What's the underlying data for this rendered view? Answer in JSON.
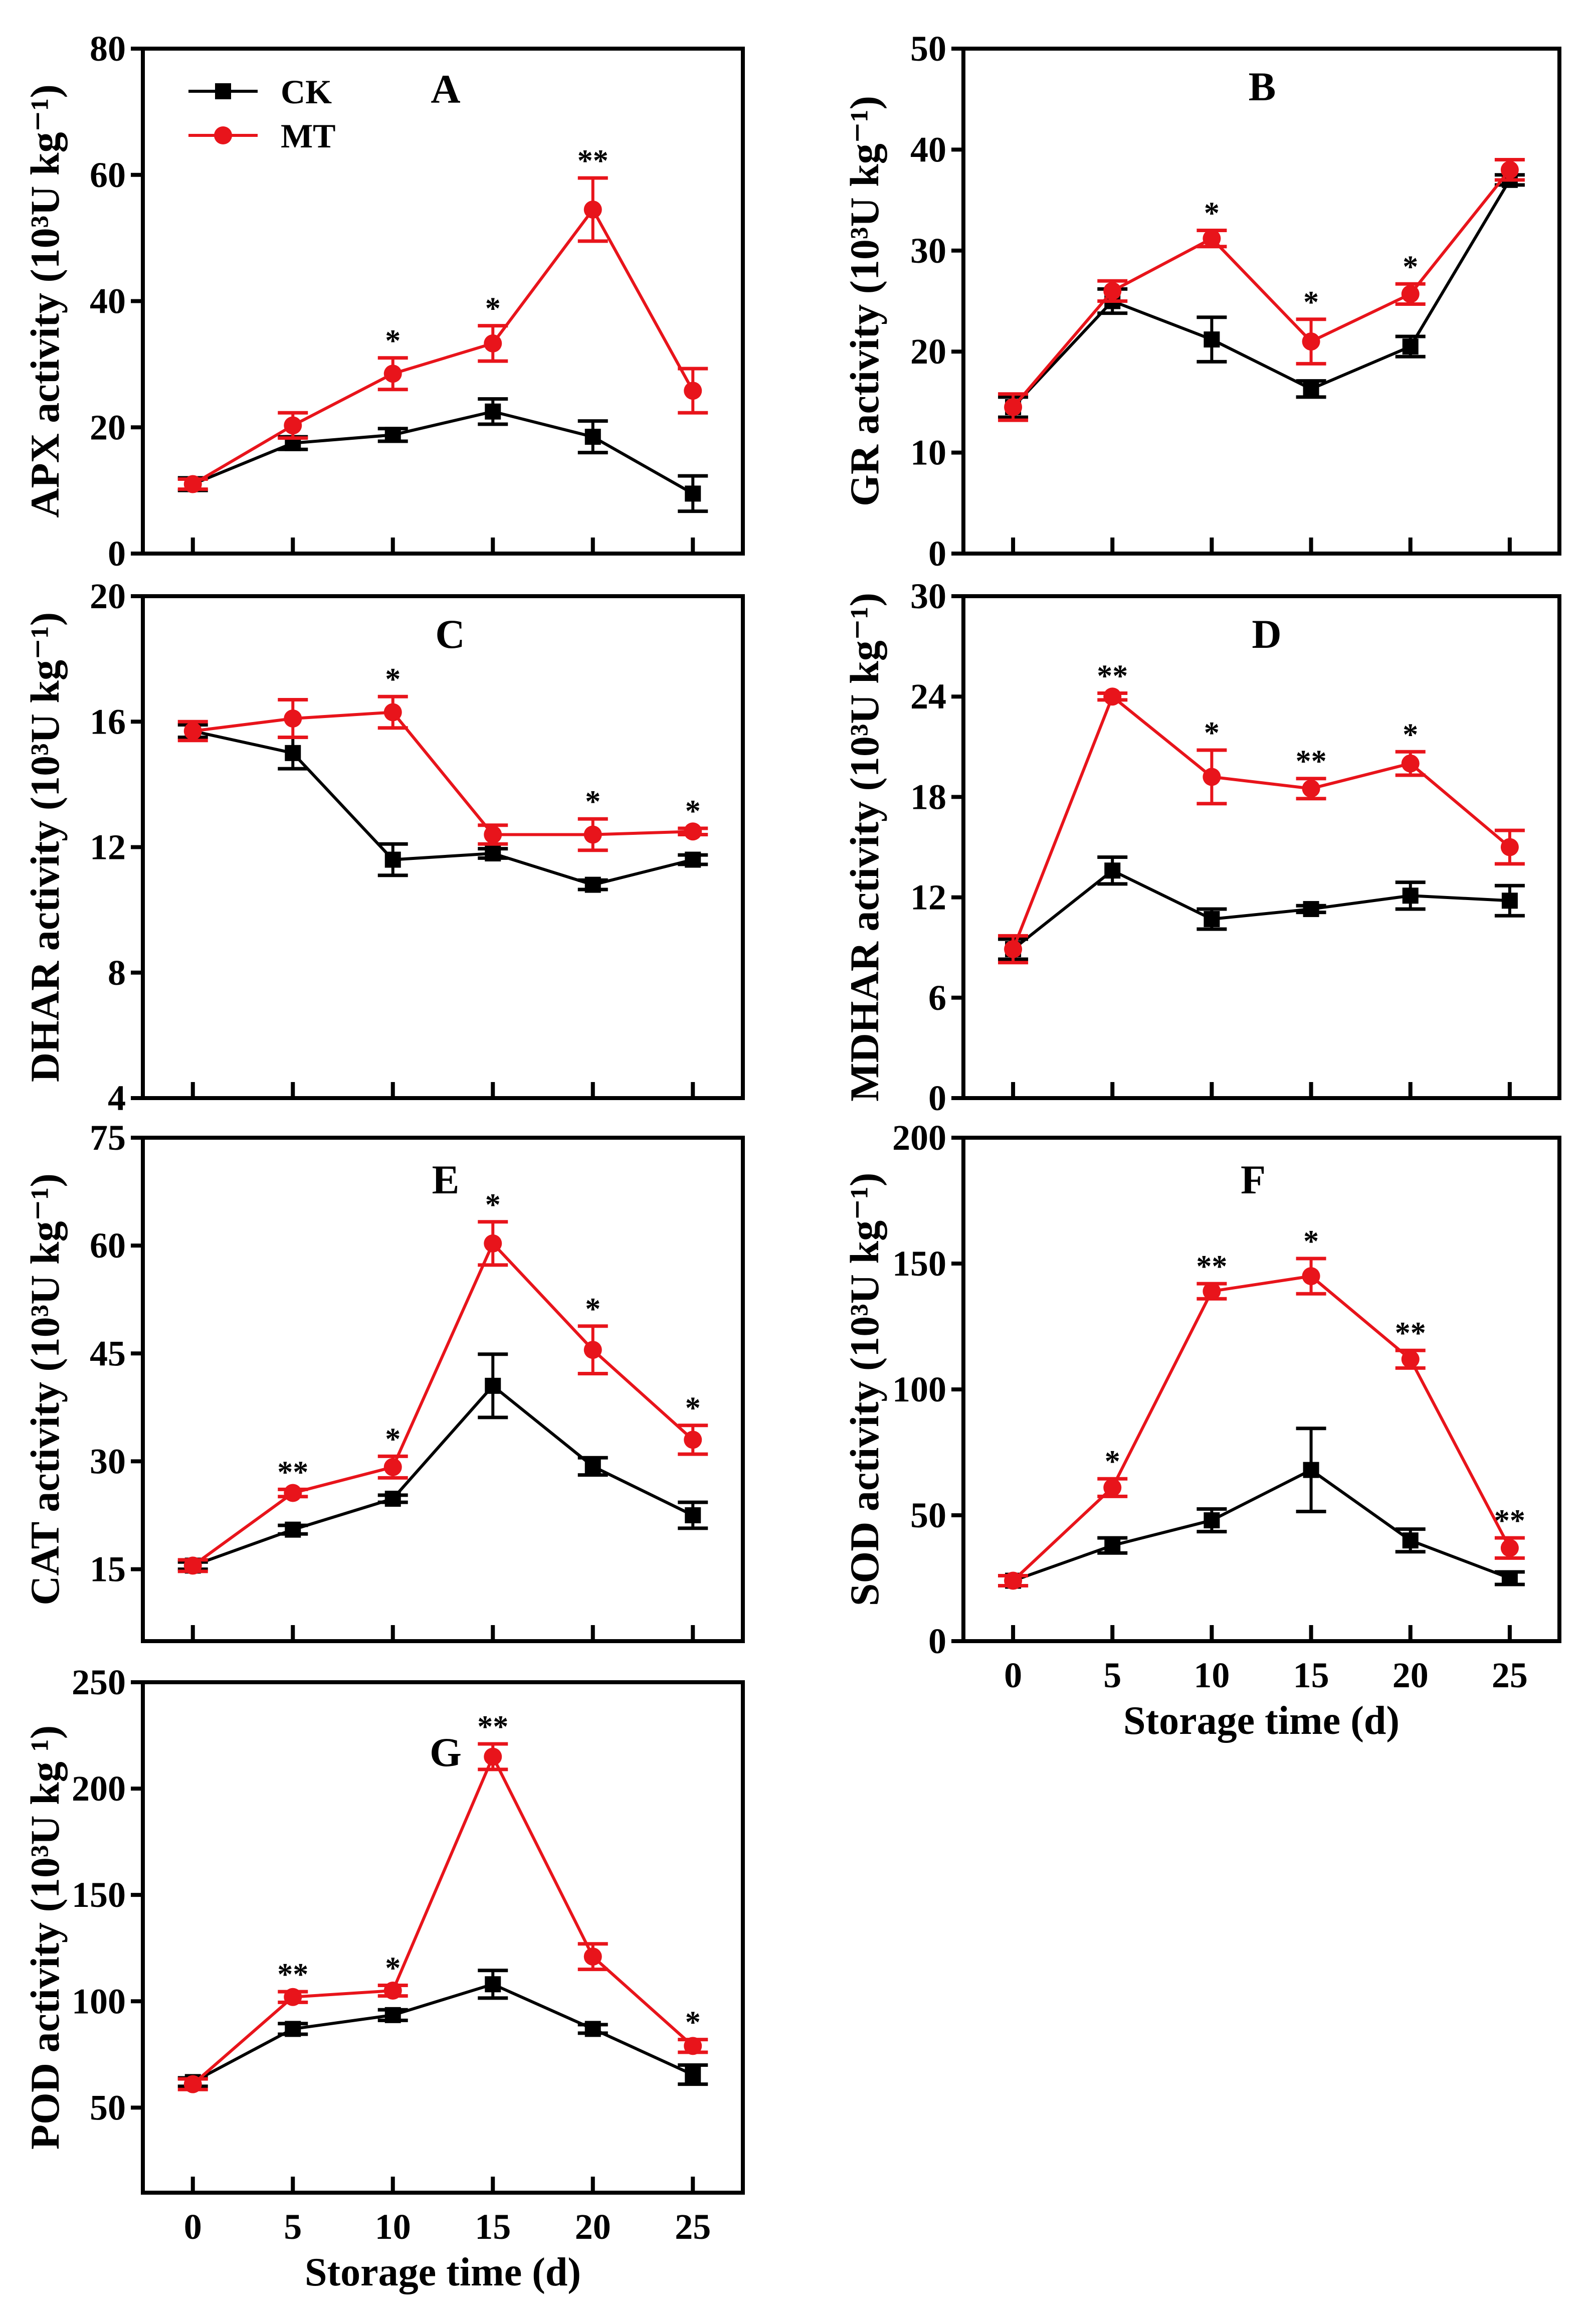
{
  "colors": {
    "CK": "#000000",
    "MT": "#e8141b",
    "axis": "#000000"
  },
  "legend": {
    "ck_label": "CK",
    "mt_label": "MT"
  },
  "xlabel": "Storage time (d)",
  "chart_data": [
    {
      "type": "line",
      "panel": "A",
      "ylabel": "APX activity (10³U kg⁻¹)",
      "xlim": [
        -2.5,
        27.5
      ],
      "ylim": [
        0,
        80
      ],
      "x": [
        0,
        5,
        10,
        15,
        20,
        25
      ],
      "xticks": [
        "0",
        "5",
        "10",
        "15",
        "20",
        "25"
      ],
      "yticks": [
        0,
        20,
        40,
        60,
        80
      ],
      "show_xticklabels": false,
      "legend": "top-left",
      "series": [
        {
          "name": "CK",
          "values": [
            11,
            17.5,
            18.8,
            22.5,
            18.5,
            9.5
          ],
          "errors": [
            1,
            1,
            1,
            2,
            2.5,
            2.8
          ]
        },
        {
          "name": "MT",
          "values": [
            11,
            20.3,
            28.5,
            33.3,
            54.5,
            25.8
          ],
          "errors": [
            0.8,
            2,
            2.5,
            2.8,
            5,
            3.5
          ]
        }
      ],
      "significance": [
        "",
        "",
        "*",
        "*",
        "**",
        ""
      ]
    },
    {
      "type": "line",
      "panel": "B",
      "ylabel": "GR activity (10³U kg⁻¹)",
      "xlim": [
        -2.5,
        27.5
      ],
      "ylim": [
        0,
        50
      ],
      "x": [
        0,
        5,
        10,
        15,
        20,
        25
      ],
      "xticks": [
        "0",
        "5",
        "10",
        "15",
        "20",
        "25"
      ],
      "yticks": [
        0,
        10,
        20,
        30,
        40,
        50
      ],
      "show_xticklabels": false,
      "series": [
        {
          "name": "CK",
          "values": [
            14.5,
            25,
            21.2,
            16.3,
            20.5,
            37
          ],
          "errors": [
            1,
            1.2,
            2.2,
            0.8,
            1,
            0.5
          ]
        },
        {
          "name": "MT",
          "values": [
            14.5,
            26,
            31.2,
            21,
            25.7,
            38
          ],
          "errors": [
            1.3,
            1,
            0.8,
            2.2,
            1,
            1
          ]
        }
      ],
      "significance": [
        "",
        "",
        "*",
        "*",
        "*",
        ""
      ]
    },
    {
      "type": "line",
      "panel": "C",
      "ylabel": "DHAR activity (10³U kg⁻¹)",
      "xlim": [
        -2.5,
        27.5
      ],
      "ylim": [
        4,
        20
      ],
      "x": [
        0,
        5,
        10,
        15,
        20,
        25
      ],
      "xticks": [
        "0",
        "5",
        "10",
        "15",
        "20",
        "25"
      ],
      "yticks": [
        4,
        8,
        12,
        16,
        20
      ],
      "show_xticklabels": false,
      "series": [
        {
          "name": "CK",
          "values": [
            15.7,
            15.0,
            11.6,
            11.8,
            10.8,
            11.6
          ],
          "errors": [
            0.2,
            0.5,
            0.5,
            0.15,
            0.15,
            0.15
          ]
        },
        {
          "name": "MT",
          "values": [
            15.7,
            16.1,
            16.3,
            12.4,
            12.4,
            12.5
          ],
          "errors": [
            0.3,
            0.6,
            0.5,
            0.3,
            0.5,
            0.1
          ]
        }
      ],
      "significance": [
        "",
        "",
        "*",
        "",
        "*",
        "*"
      ]
    },
    {
      "type": "line",
      "panel": "D",
      "ylabel": "MDHAR activity (10³U kg⁻¹)",
      "xlim": [
        -2.5,
        27.5
      ],
      "ylim": [
        0,
        30
      ],
      "x": [
        0,
        5,
        10,
        15,
        20,
        25
      ],
      "xticks": [
        "0",
        "5",
        "10",
        "15",
        "20",
        "25"
      ],
      "yticks": [
        0,
        6,
        12,
        18,
        24,
        30
      ],
      "show_xticklabels": false,
      "series": [
        {
          "name": "CK",
          "values": [
            8.9,
            13.6,
            10.7,
            11.3,
            12.1,
            11.8
          ],
          "errors": [
            0.6,
            0.8,
            0.6,
            0.2,
            0.8,
            0.9
          ]
        },
        {
          "name": "MT",
          "values": [
            8.9,
            24.0,
            19.2,
            18.5,
            20.0,
            15.0
          ],
          "errors": [
            0.8,
            0.2,
            1.6,
            0.6,
            0.7,
            1.0
          ]
        }
      ],
      "significance": [
        "",
        "**",
        "*",
        "**",
        "*",
        ""
      ]
    },
    {
      "type": "line",
      "panel": "E",
      "ylabel": "CAT activity (10³U kg⁻¹)",
      "xlim": [
        -2.5,
        27.5
      ],
      "ylim": [
        5,
        75
      ],
      "x": [
        0,
        5,
        10,
        15,
        20,
        25
      ],
      "xticks": [
        "0",
        "5",
        "10",
        "15",
        "20",
        "25"
      ],
      "yticks": [
        15,
        30,
        45,
        60,
        75
      ],
      "show_xticklabels": false,
      "series": [
        {
          "name": "CK",
          "values": [
            15.5,
            20.5,
            24.8,
            40.5,
            29.3,
            22.5
          ],
          "errors": [
            0.5,
            0.6,
            0.5,
            4.4,
            1.2,
            1.8
          ]
        },
        {
          "name": "MT",
          "values": [
            15.5,
            25.6,
            29.2,
            60.3,
            45.5,
            33.0
          ],
          "errors": [
            0.8,
            0.5,
            1.5,
            3.0,
            3.3,
            2.0
          ]
        }
      ],
      "significance": [
        "",
        "**",
        "*",
        "*",
        "*",
        "*"
      ]
    },
    {
      "type": "line",
      "panel": "F",
      "ylabel": "SOD activity (10³U kg⁻¹)",
      "xlim": [
        -2.5,
        27.5
      ],
      "ylim": [
        0,
        200
      ],
      "x": [
        0,
        5,
        10,
        15,
        20,
        25
      ],
      "xticks": [
        "0",
        "5",
        "10",
        "15",
        "20",
        "25"
      ],
      "yticks": [
        0,
        50,
        100,
        150,
        200
      ],
      "show_xticklabels": true,
      "series": [
        {
          "name": "CK",
          "values": [
            24,
            38,
            48,
            68,
            40,
            25
          ],
          "errors": [
            2,
            3,
            4.5,
            16.5,
            4.5,
            2.5
          ]
        },
        {
          "name": "MT",
          "values": [
            24,
            61,
            139,
            145,
            112,
            37
          ],
          "errors": [
            2,
            3.5,
            3,
            7,
            3.5,
            4
          ]
        }
      ],
      "significance": [
        "",
        "*",
        "**",
        "*",
        "**",
        "**"
      ]
    },
    {
      "type": "line",
      "panel": "G",
      "ylabel": "POD activity (10³U kg ¹)",
      "xlim": [
        -2.5,
        27.5
      ],
      "ylim": [
        10,
        250
      ],
      "x": [
        0,
        5,
        10,
        15,
        20,
        25
      ],
      "xticks": [
        "0",
        "5",
        "10",
        "15",
        "20",
        "25"
      ],
      "yticks": [
        50,
        100,
        150,
        200,
        250
      ],
      "show_xticklabels": true,
      "series": [
        {
          "name": "CK",
          "values": [
            62,
            87,
            93.5,
            108,
            87,
            65.5
          ],
          "errors": [
            2,
            2.5,
            2.5,
            6.5,
            2,
            4.5
          ]
        },
        {
          "name": "MT",
          "values": [
            61,
            102,
            105,
            215,
            121,
            79
          ],
          "errors": [
            2.5,
            2.5,
            2.5,
            6,
            6,
            3
          ]
        }
      ],
      "significance": [
        "",
        "**",
        "*",
        "**",
        "",
        "*"
      ]
    }
  ]
}
